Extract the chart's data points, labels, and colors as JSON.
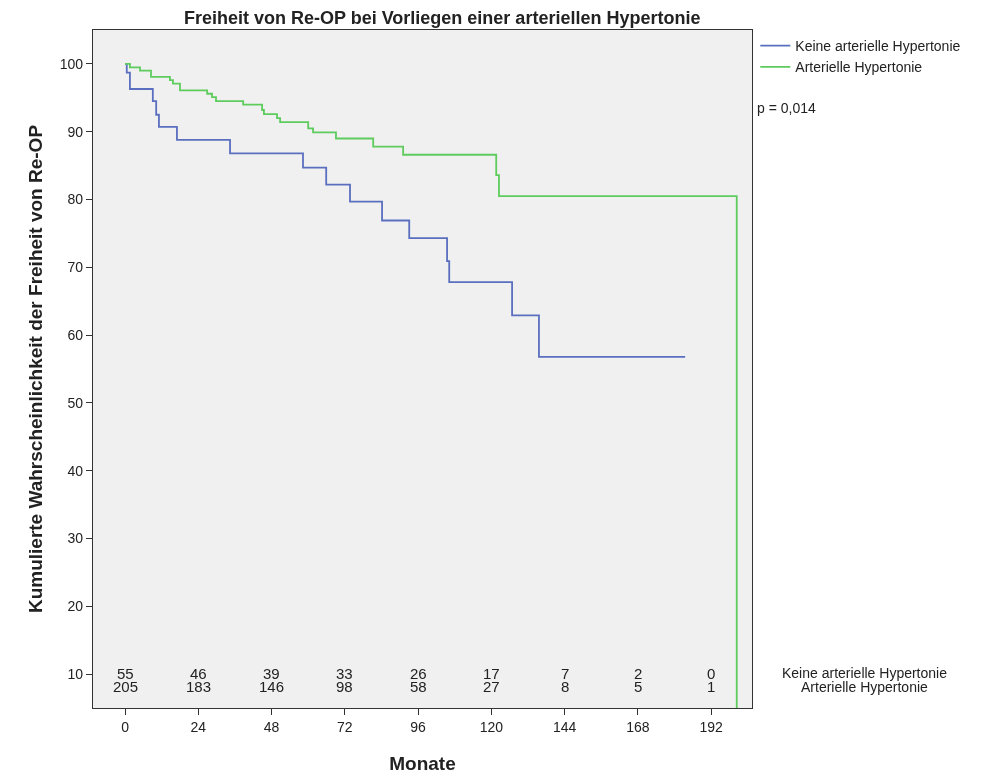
{
  "chart_data": {
    "type": "step",
    "title": "Freiheit von Re-OP bei Vorliegen einer arteriellen Hypertonie",
    "xlabel": "Monate",
    "ylabel": "Kumulierte Wahrscheinlichkeit der Freiheit von Re-OP",
    "series": [
      {
        "name": "Keine arterielle Hypertonie",
        "color": "#5a6fbf",
        "x": [
          0,
          0.56,
          1.6,
          9.1,
          10.2,
          11.1,
          17.0,
          34.4,
          58.3,
          65.9,
          73.7,
          84.2,
          93.1,
          105.5,
          106.2,
          126.8,
          135.6,
          183.5
        ],
        "values": [
          100,
          98.7,
          96.3,
          94.5,
          92.5,
          90.7,
          88.8,
          86.8,
          84.7,
          82.2,
          79.7,
          76.9,
          74.3,
          70.9,
          67.8,
          62.9,
          56.8,
          56.8
        ]
      },
      {
        "name": "Arterielle Hypertonie",
        "color": "#5dcc5d",
        "x": [
          0,
          1.6,
          4.9,
          8.5,
          14.7,
          15.7,
          18.0,
          26.9,
          28.5,
          29.8,
          38.7,
          44.9,
          45.5,
          49.8,
          50.8,
          60.0,
          61.6,
          69.1,
          81.3,
          91.1,
          121.6,
          122.5,
          200.4
        ],
        "values": [
          100,
          99.5,
          99.0,
          98.1,
          97.6,
          97.1,
          96.1,
          95.6,
          95.1,
          94.5,
          94.0,
          93.2,
          92.6,
          92.0,
          91.4,
          90.5,
          89.9,
          89.0,
          87.8,
          86.6,
          83.6,
          80.5,
          5
        ]
      }
    ],
    "xlim": [
      -10.5,
      205.4
    ],
    "xticks": [
      0,
      24,
      48,
      72,
      96,
      120,
      144,
      168,
      192
    ],
    "ylim": [
      5,
      105
    ],
    "yticks": [
      10,
      20,
      30,
      40,
      50,
      60,
      70,
      80,
      90,
      100
    ],
    "grid": false,
    "legend": "top right",
    "marker": "none",
    "line_style": "solid",
    "annotations": [
      "p = 0,014",
      "Keine arterielle Hypertonie",
      "Arterielle Hypertonie",
      "55",
      "46",
      "39",
      "33",
      "26",
      "17",
      "7",
      "2",
      "0",
      "205",
      "183",
      "146",
      "98",
      "58",
      "27",
      "8",
      "5",
      "1"
    ]
  }
}
